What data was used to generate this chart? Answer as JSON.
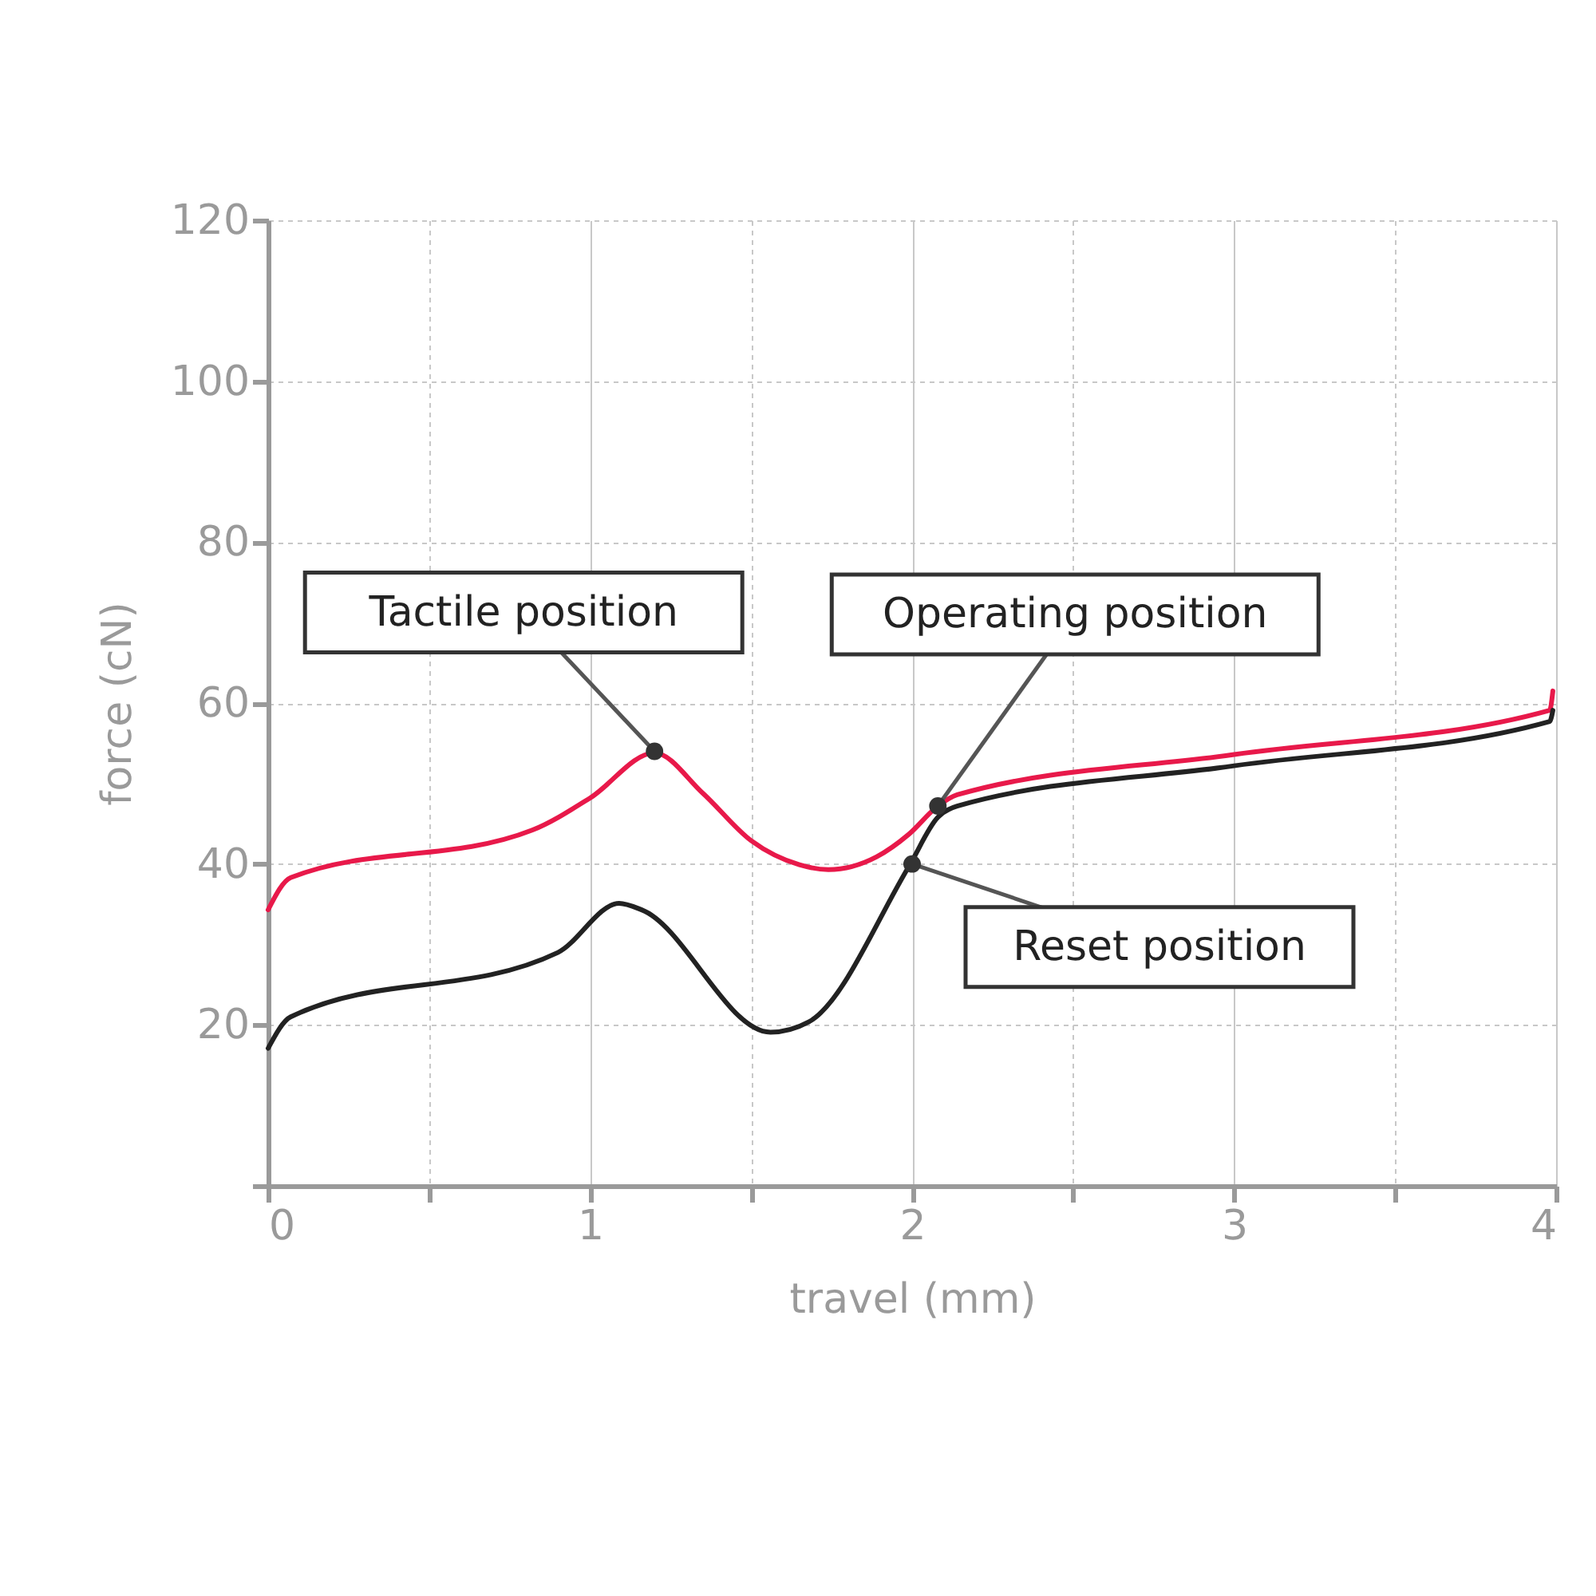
{
  "chart_data": {
    "type": "line",
    "xlabel": "travel (mm)",
    "ylabel": "force (cN)",
    "xlim": [
      0,
      4
    ],
    "ylim": [
      0,
      120
    ],
    "xticks": [
      0,
      {
        "value": 0.5,
        "label": null
      },
      1,
      {
        "value": 1.5,
        "label": null
      },
      2,
      {
        "value": 2.5,
        "label": null
      },
      3,
      {
        "value": 3.5,
        "label": null
      },
      4
    ],
    "yticks": [
      {
        "value": 0,
        "label": null
      },
      20,
      40,
      60,
      80,
      100,
      120
    ],
    "grid": true,
    "marker": "none",
    "line_style": "solid",
    "series": [
      {
        "color": "#e8194a",
        "x": [
          0,
          0.07,
          0.82,
          1.0,
          1.2,
          1.35,
          1.5,
          1.65,
          1.74,
          1.89,
          1.99,
          2.08,
          2.14,
          3.0,
          3.98,
          3.99
        ],
        "values": [
          34.3,
          38.3,
          44.2,
          48.2,
          53.8,
          48.8,
          42.9,
          39.9,
          39.3,
          40.9,
          43.7,
          47.2,
          48.6,
          53.6,
          59.1,
          61.5
        ]
      },
      {
        "color": "#222222",
        "x": [
          0,
          0.07,
          0.9,
          1.09,
          1.16,
          1.56,
          1.68,
          1.99,
          2.08,
          2.14,
          3.0,
          3.98,
          3.99
        ],
        "values": [
          17.1,
          21.0,
          29.0,
          35.1,
          34.3,
          19.1,
          20.4,
          39.7,
          45.8,
          47.2,
          52.2,
          57.7,
          59.1
        ]
      }
    ],
    "annotations": [
      {
        "text": "Tactile position",
        "x": 1.2,
        "y": 54
      },
      {
        "text": "Operating position",
        "x": 2.08,
        "y": 47.2
      },
      {
        "text": "Reset position",
        "x": 2.0,
        "y": 40
      }
    ]
  }
}
